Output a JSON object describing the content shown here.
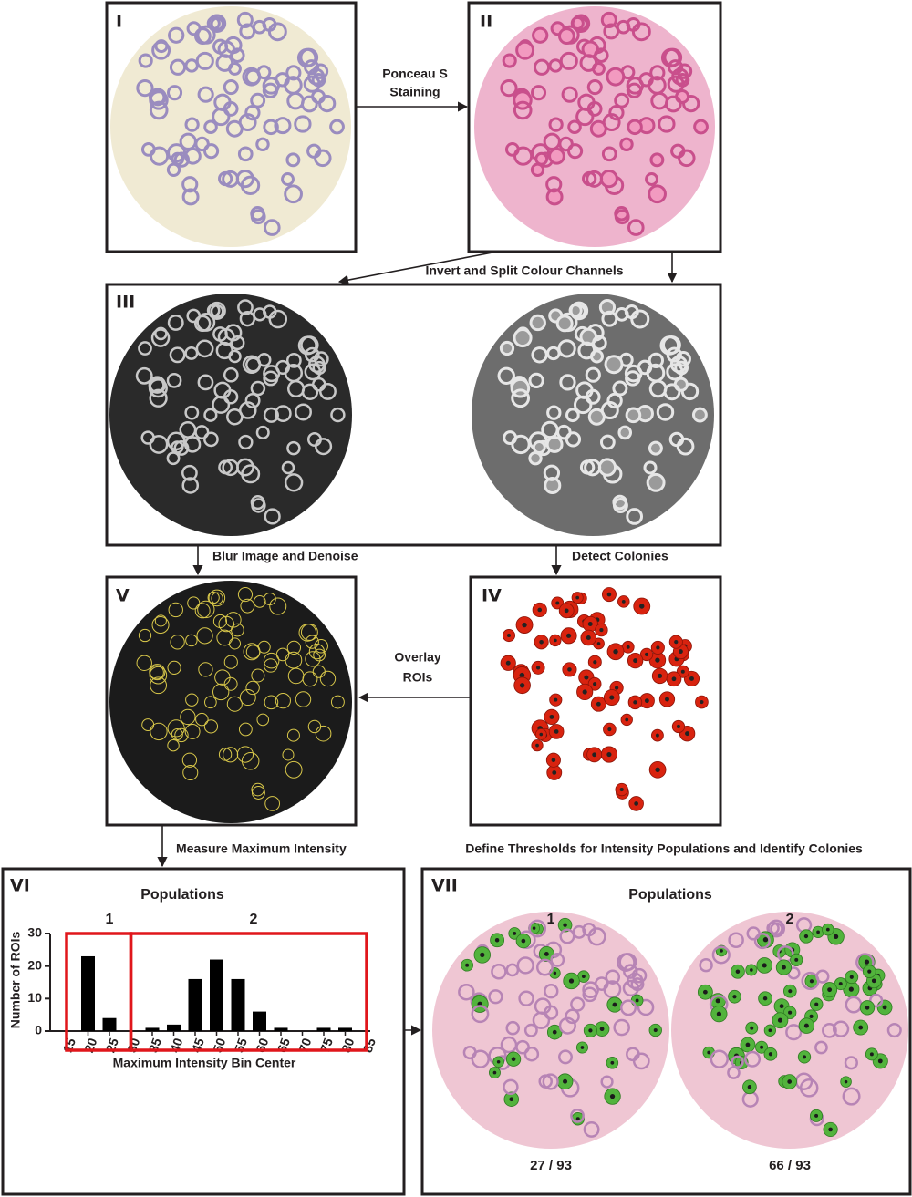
{
  "panel_labels": [
    "I",
    "II",
    "III",
    "IV",
    "V",
    "VI",
    "VII"
  ],
  "steps": {
    "staining": [
      "Ponceau S",
      "Staining"
    ],
    "split": "Invert and Split Colour Channels",
    "blur": "Blur Image and Denoise",
    "detect": "Detect Colonies",
    "overlay": [
      "Overlay",
      "ROIs"
    ],
    "measure": "Measure Maximum Intensity",
    "define": "Define Thresholds for Intensity Populations and Identify Colonies"
  },
  "histogram": {
    "type": "bar",
    "population_title": "Populations",
    "populations": [
      {
        "name": "1",
        "range": [
          15,
          30
        ]
      },
      {
        "name": "2",
        "range": [
          30,
          85
        ]
      }
    ],
    "x": [
      15,
      20,
      25,
      30,
      35,
      40,
      45,
      50,
      55,
      60,
      65,
      70,
      75,
      80,
      85
    ],
    "values": [
      0,
      23,
      4,
      0,
      1,
      2,
      16,
      22,
      16,
      6,
      1,
      0,
      1,
      1,
      0
    ],
    "color": "#000000",
    "xlim": [
      15,
      85
    ],
    "xticks": [
      15,
      20,
      25,
      30,
      35,
      40,
      45,
      50,
      55,
      60,
      65,
      70,
      75,
      80,
      85
    ],
    "ylim": [
      0,
      30
    ],
    "yticks": [
      0,
      10,
      20,
      30
    ],
    "xlabel": "Maximum Intensity Bin Center",
    "ylabel": "Number of ROIs",
    "threshold_color": "#e0161b"
  },
  "identified": {
    "title": "Populations",
    "populations": [
      {
        "name": "1",
        "count": "27 / 93"
      },
      {
        "name": "2",
        "count": "66 / 93"
      }
    ]
  }
}
